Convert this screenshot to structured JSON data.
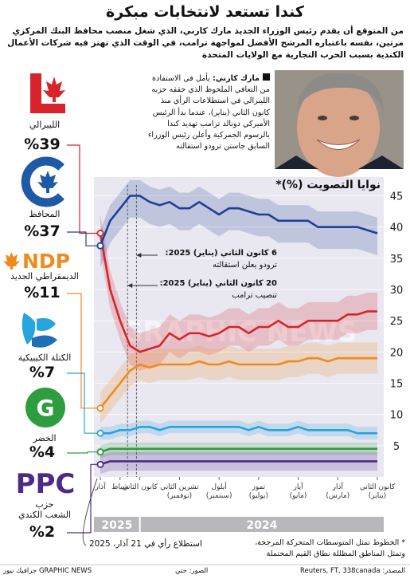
{
  "header": {
    "title": "كندا تستعد لانتخابات مبكرة",
    "subtitle": "من المتوقع أن يقدم رئيس الوزراء الجديد مارك كارني، الذي شغل منصب محافظ البنك المركزي مرتين، نفسه باعتباره المرشح الأفضل لمواجهة ترامب، في الوقت الذي تهتز فيه شركات الأعمال الكندية بسبب الحرب التجارية مع الولايات المتحدة"
  },
  "caption": {
    "name": "مارك كارني:",
    "text": "يأمل في الاستفادة من التعافي الملحوظ الذي حققه حزبه الليبرالي في استطلاعات الرأي منذ كانون الثاني (يناير)، عندما بدأ الرئيس الأميركي دونالد ترامب تهديد كندا بالرسوم الجمركية وأعلن رئيس الوزراء السابق جاستن ترودو استقالته"
  },
  "logos": {
    "ndp": "NDP",
    "green": "G",
    "ppc": "PPC"
  },
  "chart_data": {
    "type": "line",
    "title": "نوايا التصويت (%)*",
    "categories": [
      "آذار",
      null,
      "شباط",
      null,
      "كانون الثاني",
      null,
      null,
      null,
      "تشرين الثاني\n(نوفمبر)",
      null,
      null,
      null,
      "أيلول\n(سبتمبر)",
      null,
      null,
      null,
      "تموز\n(يوليو)",
      null,
      null,
      null,
      "أيار\n(مايو)",
      null,
      null,
      null,
      "آذار\n(مارس)",
      null,
      null,
      null,
      "كانون الثاني\n(يناير)"
    ],
    "year_labels": [
      "2025",
      "2024"
    ],
    "ylim": [
      0,
      48
    ],
    "yticks": [
      5,
      10,
      15,
      20,
      25,
      30,
      35,
      40,
      45
    ],
    "grid": true,
    "series": [
      {
        "name": "الليبرالي",
        "color": "#d7232a",
        "values": [
          39,
          30,
          25,
          21,
          20,
          20.5,
          21,
          23,
          22,
          23,
          23,
          22.5,
          23,
          24,
          24,
          23,
          24,
          24,
          25,
          24,
          24,
          25,
          25,
          25,
          25,
          26,
          26,
          26.5,
          26.5
        ],
        "low": [
          36,
          27,
          22,
          18,
          17,
          17.5,
          18,
          20,
          19,
          20,
          20,
          19.5,
          20,
          21,
          21,
          20,
          21,
          21,
          22,
          21,
          21,
          22,
          22,
          22,
          22,
          23,
          23,
          23.5,
          23.5
        ],
        "high": [
          42,
          33,
          28,
          24,
          23,
          23.5,
          24,
          26,
          25,
          26,
          26,
          25.5,
          26,
          27,
          27,
          26,
          27,
          27,
          28,
          27,
          27,
          28,
          28,
          28,
          28,
          29,
          29,
          29.5,
          29.5
        ],
        "value_labels": [
          "%39",
          null,
          null,
          null,
          null,
          null,
          null,
          null,
          null,
          null,
          null,
          null,
          null,
          null,
          null,
          null,
          null,
          null,
          null,
          null,
          null,
          null,
          null,
          null,
          null,
          null,
          null,
          null,
          null
        ]
      },
      {
        "name": "المحافظ",
        "color": "#1f3f94",
        "values": [
          37,
          41,
          43,
          45,
          45,
          44,
          43.5,
          44,
          43,
          43,
          44,
          43,
          42,
          43,
          43,
          42.5,
          42,
          42,
          41,
          41,
          41,
          41,
          40,
          40,
          40,
          40,
          40,
          39.5,
          39
        ],
        "low": [
          33.5,
          37.5,
          39.5,
          41.5,
          41.5,
          40.5,
          40,
          40.5,
          39.5,
          39.5,
          40.5,
          39.5,
          38.5,
          39.5,
          39.5,
          39,
          38.5,
          38.5,
          37.5,
          37.5,
          37.5,
          37.5,
          36.5,
          36.5,
          36.5,
          36.5,
          36.5,
          36,
          35.5
        ],
        "high": [
          39.5,
          43.5,
          45.5,
          47.5,
          47.5,
          46.5,
          46,
          46.5,
          45.5,
          45.5,
          46.5,
          45.5,
          44.5,
          45.5,
          45.5,
          45,
          44.5,
          44.5,
          43.5,
          43.5,
          43.5,
          43.5,
          42.5,
          42.5,
          42.5,
          42.5,
          42.5,
          42,
          41.5
        ],
        "value_labels": [
          "%37",
          null,
          null,
          null,
          null,
          null,
          null,
          null,
          null,
          null,
          null,
          null,
          null,
          null,
          null,
          null,
          null,
          null,
          null,
          null,
          null,
          null,
          null,
          null,
          null,
          null,
          null,
          null,
          null
        ]
      },
      {
        "name": "الديمقراطي الجديد",
        "color": "#f08a1c",
        "values": [
          11,
          13,
          15,
          17,
          18,
          17.5,
          18,
          18,
          18,
          18,
          18.5,
          18,
          18,
          18.5,
          18,
          18,
          18,
          18,
          18,
          18.5,
          18.5,
          19,
          19,
          18.5,
          19,
          19,
          19,
          19,
          19
        ],
        "low": [
          8.5,
          10.5,
          12.5,
          14.5,
          15.5,
          15,
          15.5,
          15.5,
          15.5,
          15.5,
          16,
          15.5,
          15.5,
          16,
          15.5,
          15.5,
          15.5,
          15.5,
          15.5,
          16,
          16,
          16.5,
          16.5,
          16,
          16.5,
          16.5,
          16.5,
          16.5,
          16.5
        ],
        "high": [
          13.5,
          15.5,
          17.5,
          19.5,
          20.5,
          20,
          20.5,
          20.5,
          20.5,
          20.5,
          21,
          20.5,
          20.5,
          21,
          20.5,
          20.5,
          20.5,
          20.5,
          20.5,
          21,
          21,
          21.5,
          21.5,
          21,
          21.5,
          21.5,
          21.5,
          21.5,
          21.5
        ],
        "value_labels": [
          "%11",
          null,
          null,
          null,
          null,
          null,
          null,
          null,
          null,
          null,
          null,
          null,
          null,
          null,
          null,
          null,
          null,
          null,
          null,
          null,
          null,
          null,
          null,
          null,
          null,
          null,
          null,
          null,
          null
        ]
      },
      {
        "name": "الكتلة الكيبيكية",
        "color": "#26a4dc",
        "values": [
          7,
          7,
          7.5,
          7.5,
          8,
          8,
          7.5,
          8,
          8,
          8,
          8,
          8,
          8,
          8,
          8,
          7.5,
          8,
          7.5,
          7.5,
          7.5,
          8,
          7.5,
          7.5,
          7.5,
          7.5,
          7.5,
          7,
          7,
          7
        ],
        "low": [
          6,
          6,
          6.5,
          6.5,
          7,
          7,
          6.5,
          7,
          7,
          7,
          7,
          7,
          7,
          7,
          7,
          6.5,
          7,
          6.5,
          6.5,
          6.5,
          7,
          6.5,
          6.5,
          6.5,
          6.5,
          6.5,
          6,
          6,
          6
        ],
        "high": [
          8,
          8,
          8.5,
          8.5,
          9,
          9,
          8.5,
          9,
          9,
          9,
          9,
          9,
          9,
          9,
          9,
          8.5,
          9,
          8.5,
          8.5,
          8.5,
          9,
          8.5,
          8.5,
          8.5,
          8.5,
          8.5,
          8,
          8,
          8
        ],
        "value_labels": [
          "%7",
          null,
          null,
          null,
          null,
          null,
          null,
          null,
          null,
          null,
          null,
          null,
          null,
          null,
          null,
          null,
          null,
          null,
          null,
          null,
          null,
          null,
          null,
          null,
          null,
          null,
          null,
          null,
          null
        ]
      },
      {
        "name": "الخضر",
        "color": "#2e9d3f",
        "values": [
          4,
          4.5,
          4.5,
          4.5,
          4.5,
          4.5,
          4.5,
          4.5,
          4.5,
          4.5,
          4.5,
          4.5,
          4.5,
          4.5,
          4.5,
          4.5,
          4.5,
          4.5,
          4.5,
          4.5,
          4.5,
          4.5,
          4.5,
          4.5,
          4.5,
          4.5,
          4.5,
          4.5,
          4.5
        ],
        "low": [
          3,
          3.5,
          3.5,
          3.5,
          3.5,
          3.5,
          3.5,
          3.5,
          3.5,
          3.5,
          3.5,
          3.5,
          3.5,
          3.5,
          3.5,
          3.5,
          3.5,
          3.5,
          3.5,
          3.5,
          3.5,
          3.5,
          3.5,
          3.5,
          3.5,
          3.5,
          3.5,
          3.5,
          3.5
        ],
        "high": [
          5,
          5.5,
          5.5,
          5.5,
          5.5,
          5.5,
          5.5,
          5.5,
          5.5,
          5.5,
          5.5,
          5.5,
          5.5,
          5.5,
          5.5,
          5.5,
          5.5,
          5.5,
          5.5,
          5.5,
          5.5,
          5.5,
          5.5,
          5.5,
          5.5,
          5.5,
          5.5,
          5.5,
          5.5
        ],
        "value_labels": [
          "%4",
          null,
          null,
          null,
          null,
          null,
          null,
          null,
          null,
          null,
          null,
          null,
          null,
          null,
          null,
          null,
          null,
          null,
          null,
          null,
          null,
          null,
          null,
          null,
          null,
          null,
          null,
          null,
          null
        ]
      },
      {
        "name": "حزب\nالشعب الكندي",
        "color": "#4c2a85",
        "values": [
          2,
          2.5,
          2.5,
          2.5,
          2.5,
          2.5,
          2.5,
          2.5,
          2.5,
          2.5,
          2.5,
          2.5,
          2.5,
          2.5,
          2.5,
          2.5,
          2.5,
          2.5,
          2.5,
          2.5,
          2.5,
          2.5,
          2.5,
          2.5,
          2.5,
          2.5,
          2.5,
          2.5,
          2.5
        ],
        "low": [
          0.5,
          1,
          1,
          1,
          1,
          1,
          1,
          1,
          1,
          1,
          1,
          1,
          1,
          1,
          1,
          1,
          1,
          1,
          1,
          1,
          1,
          1,
          1,
          1,
          1,
          1,
          1,
          1,
          1
        ],
        "high": [
          3.5,
          4,
          4,
          4,
          4,
          4,
          4,
          4,
          4,
          4,
          4,
          4,
          4,
          4,
          4,
          4,
          4,
          4,
          4,
          4,
          4,
          4,
          4,
          4,
          4,
          4,
          4,
          4,
          4
        ],
        "value_labels": [
          "%2",
          null,
          null,
          null,
          null,
          null,
          null,
          null,
          null,
          null,
          null,
          null,
          null,
          null,
          null,
          null,
          null,
          null,
          null,
          null,
          null,
          null,
          null,
          null,
          null,
          null,
          null,
          null,
          null
        ]
      }
    ],
    "annotations": [
      {
        "date": "6 كانون الثاني (يناير) 2025:",
        "text": "ترودو يعلن استقالته"
      },
      {
        "date": "20 كانون الثاني (يناير) 2025:",
        "text": "تنصيب ترامب"
      }
    ],
    "poll_note": "استطلاع رأي في 21 آذار، 2025"
  },
  "footer": {
    "note": "* الخطوط تمثل المتوسطات المتحركة المرجحة، وتمثل المناطق المظللة نطاق القيم المحتملة",
    "source": "المصدر: Reuters, FT, 338canada",
    "photo": "الصور: جتي",
    "brand": "GRAPHIC NEWS جرافيك نيوز",
    "watermark": "GRAPHIC NEWS"
  }
}
